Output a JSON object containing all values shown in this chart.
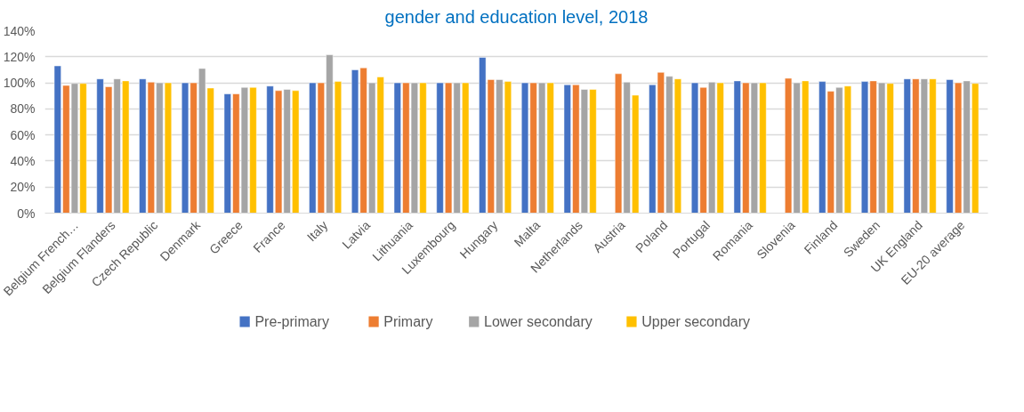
{
  "chart_data": {
    "type": "bar",
    "title": "gender and education level, 2018",
    "categories": [
      "Belgium French…",
      "Belgium Flanders",
      "Czech Republic",
      "Denmark",
      "Greece",
      "France",
      "Italy",
      "Latvia",
      "Lithuania",
      "Luxembourg",
      "Hungary",
      "Malta",
      "Netherlands",
      "Austria",
      "Poland",
      "Portugal",
      "Romania",
      "Slovenia",
      "Finland",
      "Sweden",
      "UK England",
      "EU-20 average"
    ],
    "series": [
      {
        "name": "Pre-primary",
        "color": "#4472c4",
        "values": [
          113,
          103,
          103,
          100,
          91.5,
          97.5,
          100,
          110,
          100,
          100,
          119.5,
          100,
          98.5,
          null,
          98.5,
          100,
          101.5,
          null,
          101,
          101,
          103,
          102.5
        ]
      },
      {
        "name": "Primary",
        "color": "#ed7d31",
        "values": [
          98,
          97,
          100.5,
          100,
          91.5,
          94,
          100,
          111.5,
          100,
          100,
          102.5,
          100,
          98.5,
          107,
          108,
          96.5,
          100,
          103.5,
          93.5,
          101.5,
          103,
          100
        ]
      },
      {
        "name": "Lower secondary",
        "color": "#a5a5a5",
        "values": [
          99.5,
          103,
          100,
          111,
          96.5,
          95,
          121.5,
          100,
          100,
          100,
          102.5,
          100,
          95,
          100.5,
          105,
          100.5,
          100,
          100,
          96.5,
          100,
          103,
          101.5
        ]
      },
      {
        "name": "Upper secondary",
        "color": "#ffc000",
        "values": [
          99.5,
          101.5,
          100,
          96,
          96.5,
          94,
          101,
          104.5,
          100,
          100,
          101,
          100,
          95,
          90.5,
          103,
          100,
          100,
          101.5,
          97.5,
          99.5,
          103,
          99.5
        ]
      }
    ],
    "ylim": [
      0,
      140
    ],
    "yticks": [
      {
        "value": 0,
        "label": "0%"
      },
      {
        "value": 20,
        "label": "20%"
      },
      {
        "value": 40,
        "label": "40%"
      },
      {
        "value": 60,
        "label": "60%"
      },
      {
        "value": 80,
        "label": "80%"
      },
      {
        "value": 100,
        "label": "100%"
      },
      {
        "value": 120,
        "label": "120%"
      },
      {
        "value": 140,
        "label": "140%"
      }
    ],
    "grid": "y",
    "legend": "bottom"
  }
}
